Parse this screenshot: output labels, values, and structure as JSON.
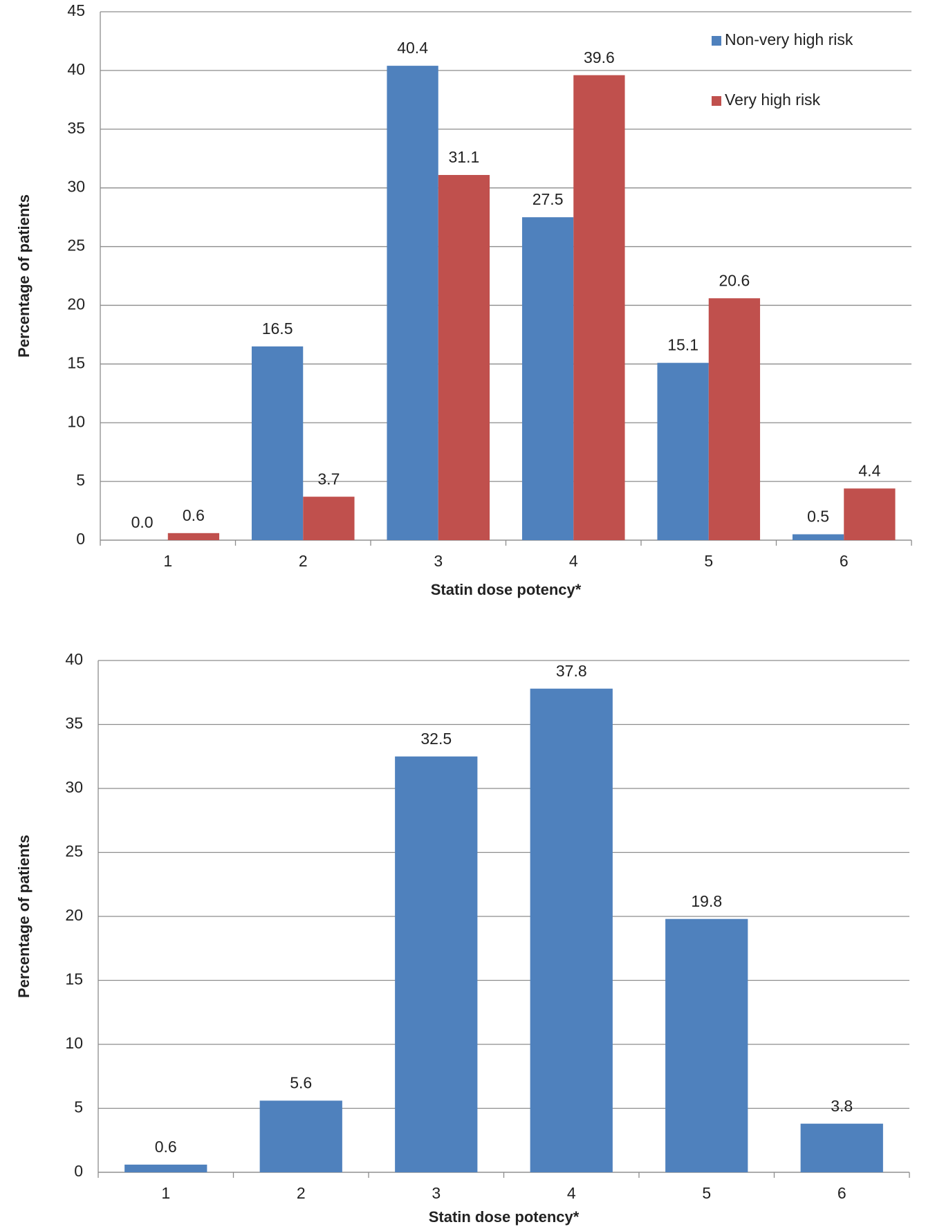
{
  "chart_data": [
    {
      "type": "bar",
      "categories": [
        "1",
        "2",
        "3",
        "4",
        "5",
        "6"
      ],
      "series": [
        {
          "name": "Non-very high risk",
          "color": "#4f81bd",
          "values": [
            0,
            16.5,
            40.4,
            27.5,
            15.1,
            0.5
          ],
          "value_labels": [
            "0.0",
            "16.5",
            "40.4",
            "27.5",
            "15.1",
            "0.5"
          ]
        },
        {
          "name": "Very high risk",
          "color": "#c0504d",
          "values": [
            0.6,
            3.7,
            31.1,
            39.6,
            20.6,
            4.4
          ]
        }
      ],
      "x_label": "Statin dose potency*",
      "y_label": "Percentage of patients",
      "ylim": [
        0,
        45
      ],
      "yticks": [
        0,
        5,
        10,
        15,
        20,
        25,
        30,
        35,
        40,
        45
      ],
      "grid": true,
      "legend": "upper right"
    },
    {
      "type": "bar",
      "categories": [
        "1",
        "2",
        "3",
        "4",
        "5",
        "6"
      ],
      "values": [
        0.6,
        5.6,
        32.5,
        37.8,
        19.8,
        3.8
      ],
      "color": "#4f81bd",
      "x_label": "Statin dose potency*",
      "y_label": "Percentage of patients",
      "ylim": [
        0,
        40
      ],
      "yticks": [
        0,
        5,
        10,
        15,
        20,
        25,
        30,
        35,
        40
      ],
      "grid": true
    }
  ]
}
